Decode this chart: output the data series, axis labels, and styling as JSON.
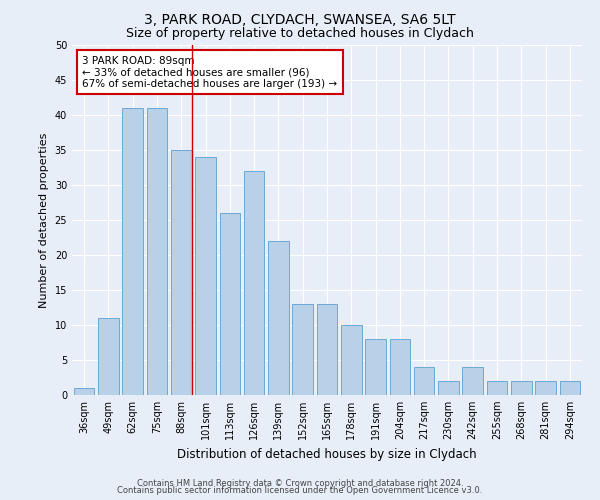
{
  "title1": "3, PARK ROAD, CLYDACH, SWANSEA, SA6 5LT",
  "title2": "Size of property relative to detached houses in Clydach",
  "xlabel": "Distribution of detached houses by size in Clydach",
  "ylabel": "Number of detached properties",
  "categories": [
    "36sqm",
    "49sqm",
    "62sqm",
    "75sqm",
    "88sqm",
    "101sqm",
    "113sqm",
    "126sqm",
    "139sqm",
    "152sqm",
    "165sqm",
    "178sqm",
    "191sqm",
    "204sqm",
    "217sqm",
    "230sqm",
    "242sqm",
    "255sqm",
    "268sqm",
    "281sqm",
    "294sqm"
  ],
  "values": [
    1,
    11,
    41,
    41,
    35,
    34,
    26,
    32,
    22,
    13,
    13,
    10,
    8,
    8,
    4,
    2,
    4,
    2,
    2,
    2,
    2
  ],
  "bar_color": "#b8d0e8",
  "bar_edge_color": "#6aaad4",
  "red_line_color": "#cc0000",
  "annotation_title": "3 PARK ROAD: 89sqm",
  "annotation_line1": "← 33% of detached houses are smaller (96)",
  "annotation_line2": "67% of semi-detached houses are larger (193) →",
  "annotation_box_color": "#ffffff",
  "annotation_border_color": "#cc0000",
  "ylim": [
    0,
    50
  ],
  "yticks": [
    0,
    5,
    10,
    15,
    20,
    25,
    30,
    35,
    40,
    45,
    50
  ],
  "background_color": "#e8eef8",
  "footer1": "Contains HM Land Registry data © Crown copyright and database right 2024.",
  "footer2": "Contains public sector information licensed under the Open Government Licence v3.0.",
  "title1_fontsize": 10,
  "title2_fontsize": 9,
  "xlabel_fontsize": 8.5,
  "ylabel_fontsize": 8,
  "tick_fontsize": 7,
  "annotation_fontsize": 7.5,
  "footer_fontsize": 6
}
